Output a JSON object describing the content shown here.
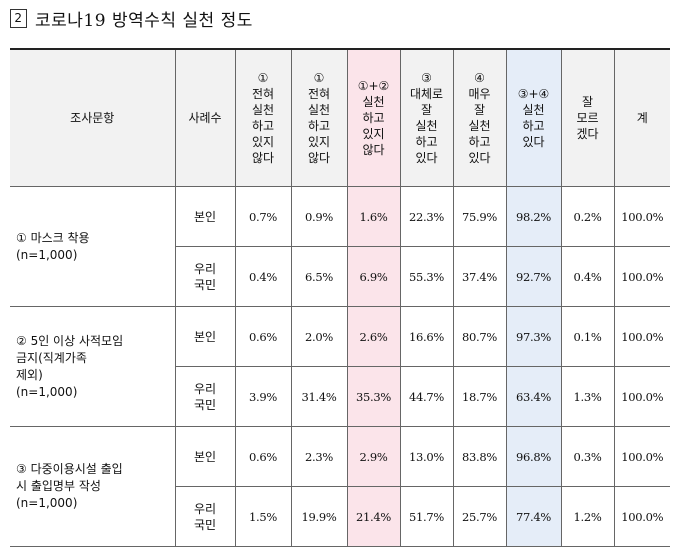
{
  "title": {
    "number": "2",
    "text": "코로나19 방역수칙 실천 정도"
  },
  "headers": {
    "item": "조사문항",
    "respondent": "사례수",
    "c1": "①\n전혀\n실천\n하고\n있지\n않다",
    "c2": "①\n전혀\n실천\n하고\n있지\n않다",
    "c12": "①+②\n실천\n하고\n있지\n않다",
    "c3": "③\n대체로\n잘\n실천\n하고\n있다",
    "c4": "④\n매우\n잘\n실천\n하고\n있다",
    "c34": "③+④\n실천\n하고\n있다",
    "c_dk": "잘\n모르\n겠다",
    "c_total": "계"
  },
  "rows": [
    {
      "item_name": "① 마스크 착용",
      "item_n": "(n=1,000)",
      "sub": [
        {
          "respondent": "본인",
          "values": [
            "0.7%",
            "0.9%",
            "1.6%",
            "22.3%",
            "75.9%",
            "98.2%",
            "0.2%",
            "100.0%"
          ]
        },
        {
          "respondent": "우리\n국민",
          "values": [
            "0.4%",
            "6.5%",
            "6.9%",
            "55.3%",
            "37.4%",
            "92.7%",
            "0.4%",
            "100.0%"
          ]
        }
      ]
    },
    {
      "item_name": "② 5인 이상 사적모임\n금지(직계가족\n제외)",
      "item_n": "(n=1,000)",
      "sub": [
        {
          "respondent": "본인",
          "values": [
            "0.6%",
            "2.0%",
            "2.6%",
            "16.6%",
            "80.7%",
            "97.3%",
            "0.1%",
            "100.0%"
          ]
        },
        {
          "respondent": "우리\n국민",
          "values": [
            "3.9%",
            "31.4%",
            "35.3%",
            "44.7%",
            "18.7%",
            "63.4%",
            "1.3%",
            "100.0%"
          ]
        }
      ]
    },
    {
      "item_name": "③ 다중이용시설 출입\n시 출입명부 작성",
      "item_n": "(n=1,000)",
      "sub": [
        {
          "respondent": "본인",
          "values": [
            "0.6%",
            "2.3%",
            "2.9%",
            "13.0%",
            "83.8%",
            "96.8%",
            "0.3%",
            "100.0%"
          ]
        },
        {
          "respondent": "우리\n국민",
          "values": [
            "1.5%",
            "19.9%",
            "21.4%",
            "51.7%",
            "25.7%",
            "77.4%",
            "1.2%",
            "100.0%"
          ]
        }
      ]
    }
  ]
}
